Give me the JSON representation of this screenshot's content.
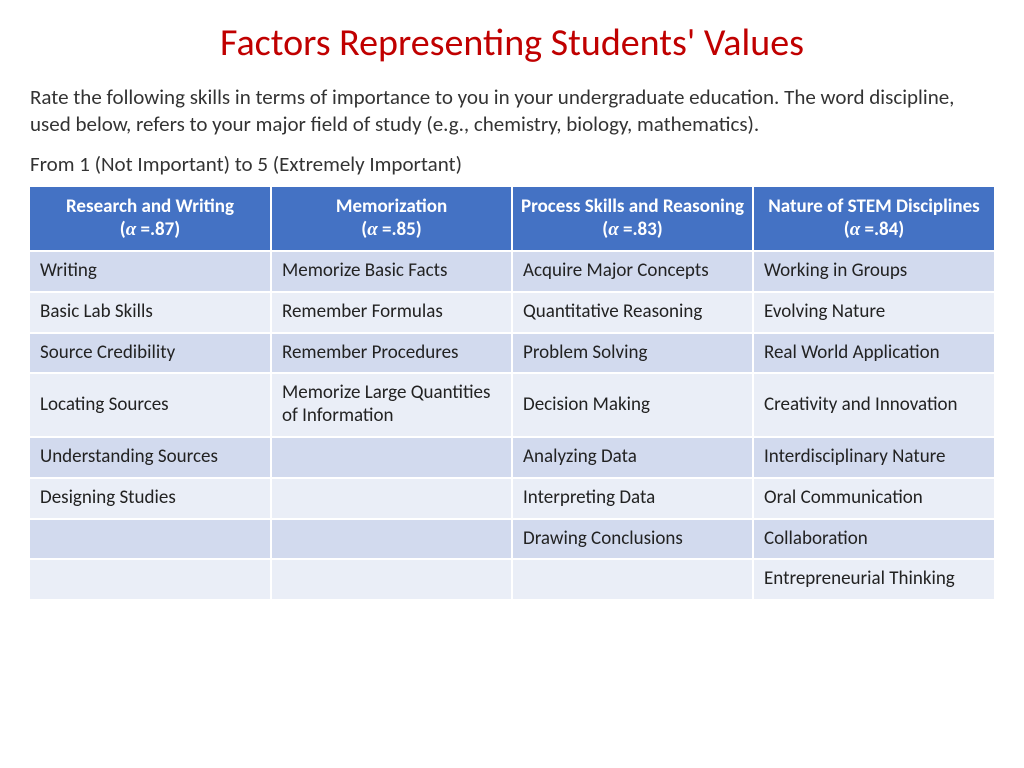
{
  "title": "Factors Representing Students' Values",
  "title_color": "#c00000",
  "intro": "Rate the following skills in terms of importance to you in your undergraduate education. The word discipline, used below, refers to your major field of study (e.g., chemistry, biology, mathematics).",
  "scale": "From 1 (Not Important) to 5 (Extremely Important)",
  "body_text_color": "#333333",
  "table": {
    "header_bg": "#4472c4",
    "header_fg": "#ffffff",
    "row_bg_odd": "#d2daee",
    "row_bg_even": "#eaeef7",
    "cell_text_color": "#222222",
    "columns": [
      {
        "name": "Research and Writing",
        "alpha": ".87"
      },
      {
        "name": "Memorization",
        "alpha": ".85"
      },
      {
        "name": "Process Skills and Reasoning",
        "alpha": ".83"
      },
      {
        "name": "Nature of STEM Disciplines",
        "alpha": ".84"
      }
    ],
    "rows": [
      [
        "Writing",
        "Memorize Basic Facts",
        "Acquire Major Concepts",
        "Working in Groups"
      ],
      [
        "Basic Lab Skills",
        "Remember Formulas",
        "Quantitative Reasoning",
        "Evolving Nature"
      ],
      [
        "Source Credibility",
        "Remember Procedures",
        "Problem Solving",
        "Real World Application"
      ],
      [
        "Locating Sources",
        "Memorize Large Quantities of Information",
        "Decision Making",
        "Creativity and Innovation"
      ],
      [
        "Understanding Sources",
        "",
        "Analyzing Data",
        "Interdisciplinary Nature"
      ],
      [
        "Designing Studies",
        "",
        "Interpreting Data",
        "Oral Communication"
      ],
      [
        "",
        "",
        "Drawing Conclusions",
        "Collaboration"
      ],
      [
        "",
        "",
        "",
        "Entrepreneurial Thinking"
      ]
    ]
  }
}
